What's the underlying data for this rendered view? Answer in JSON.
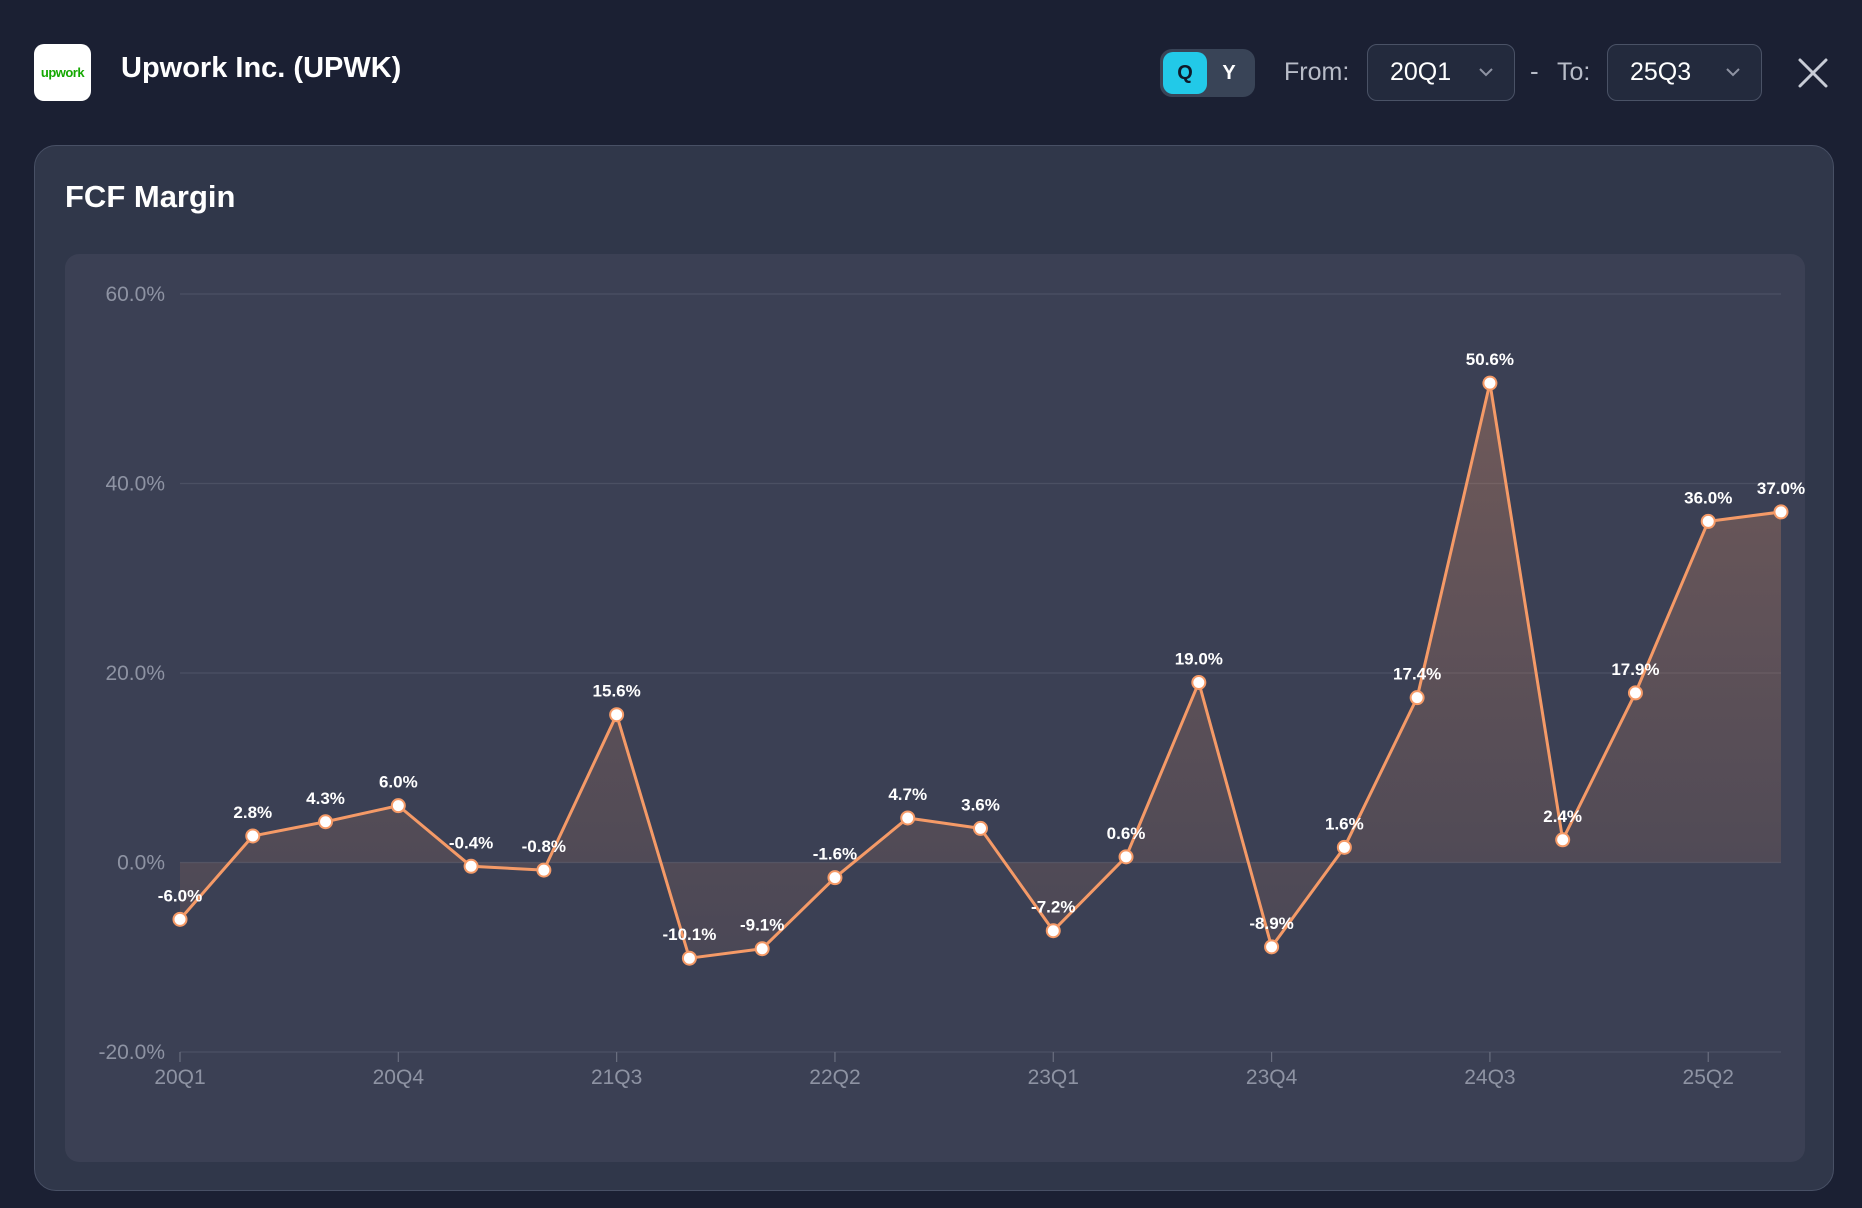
{
  "header": {
    "logo_text": "upwork",
    "company": "Upwork Inc. (UPWK)",
    "toggle": {
      "q": "Q",
      "y": "Y",
      "active": "Q"
    },
    "from_label": "From:",
    "from_value": "20Q1",
    "dash": "-",
    "to_label": "To:",
    "to_value": "25Q3"
  },
  "card": {
    "title": "FCF Margin"
  },
  "colors": {
    "line": "#f59a67",
    "accent": "#22c9e8",
    "background": "#1b2033"
  },
  "chart_data": {
    "type": "area",
    "title": "FCF Margin",
    "xlabel": "",
    "ylabel": "",
    "x": [
      "20Q1",
      "20Q2",
      "20Q3",
      "20Q4",
      "21Q1",
      "21Q2",
      "21Q3",
      "21Q4",
      "22Q1",
      "22Q2",
      "22Q3",
      "22Q4",
      "23Q1",
      "23Q2",
      "23Q3",
      "23Q4",
      "24Q1",
      "24Q2",
      "24Q3",
      "24Q4",
      "25Q1",
      "25Q2",
      "25Q3"
    ],
    "values": [
      -6.0,
      2.8,
      4.3,
      6.0,
      -0.4,
      -0.8,
      15.6,
      -10.1,
      -9.1,
      -1.6,
      4.7,
      3.6,
      -7.2,
      0.6,
      19.0,
      -8.9,
      1.6,
      17.4,
      50.6,
      2.4,
      17.9,
      36.0,
      37.0
    ],
    "labels": [
      "-6.0%",
      "2.8%",
      "4.3%",
      "6.0%",
      "-0.4%",
      "-0.8%",
      "15.6%",
      "-10.1%",
      "-9.1%",
      "-1.6%",
      "4.7%",
      "3.6%",
      "-7.2%",
      "0.6%",
      "19.0%",
      "-8.9%",
      "1.6%",
      "17.4%",
      "50.6%",
      "2.4%",
      "17.9%",
      "36.0%",
      "37.0%"
    ],
    "x_ticks": [
      "20Q1",
      "20Q4",
      "21Q3",
      "22Q2",
      "23Q1",
      "23Q4",
      "24Q3",
      "25Q2"
    ],
    "y_ticks": [
      60,
      40,
      20,
      0,
      -20
    ],
    "y_tick_labels": [
      "60.0%",
      "40.0%",
      "20.0%",
      "0.0%",
      "-20.0%"
    ],
    "ylim": [
      -20,
      60
    ],
    "grid": true,
    "legend": "none"
  }
}
